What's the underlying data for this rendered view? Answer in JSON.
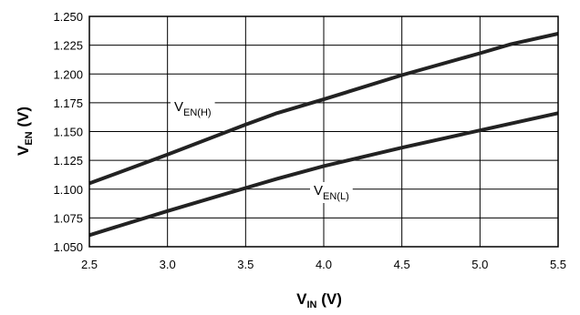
{
  "chart_data": {
    "type": "line",
    "xlabel": "V",
    "xlabel_sub": "IN",
    "xlabel_unit": " (V)",
    "ylabel": "V",
    "ylabel_sub": "EN",
    "ylabel_unit": " (V)",
    "xlim": [
      2.5,
      5.5
    ],
    "ylim": [
      1.05,
      1.25
    ],
    "x_ticks": [
      "2.5",
      "3.0",
      "3.5",
      "4.0",
      "4.5",
      "5.0",
      "5.5"
    ],
    "y_ticks": [
      "1.050",
      "1.075",
      "1.100",
      "1.125",
      "1.150",
      "1.175",
      "1.200",
      "1.225",
      "1.250"
    ],
    "grid": true,
    "legend": "none",
    "series": [
      {
        "name": "V",
        "name_sub": "EN(H)",
        "x": [
          2.5,
          3.0,
          3.5,
          3.7,
          4.0,
          4.5,
          5.0,
          5.2,
          5.5
        ],
        "y": [
          1.105,
          1.13,
          1.156,
          1.166,
          1.178,
          1.199,
          1.218,
          1.226,
          1.235
        ]
      },
      {
        "name": "V",
        "name_sub": "EN(L)",
        "x": [
          2.5,
          3.0,
          3.5,
          3.7,
          4.0,
          4.5,
          5.0,
          5.5
        ],
        "y": [
          1.06,
          1.081,
          1.101,
          1.109,
          1.12,
          1.136,
          1.151,
          1.166
        ]
      }
    ]
  }
}
